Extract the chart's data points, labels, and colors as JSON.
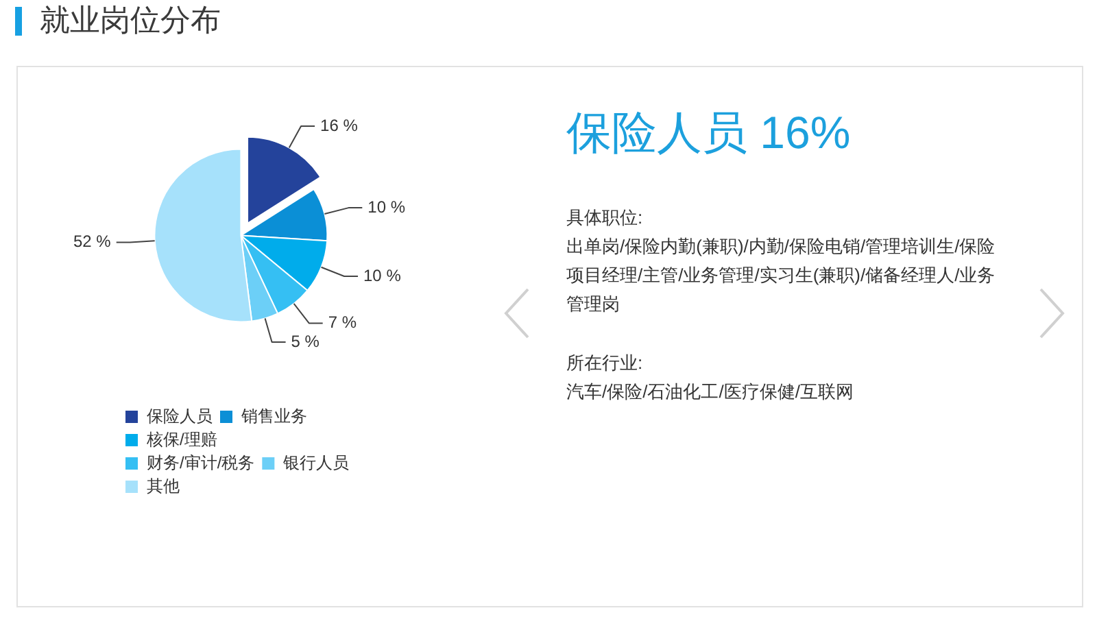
{
  "chart_data": [
    {
      "type": "pie",
      "title": "就业岗位分布",
      "categories": [
        "保险人员",
        "销售业务",
        "核保/理赔",
        "财务/审计/税务",
        "银行人员",
        "其他"
      ],
      "values": [
        16,
        10,
        10,
        7,
        5,
        52
      ],
      "colors": [
        "#24439b",
        "#0b8fd6",
        "#00aceb",
        "#35bff3",
        "#6ccff7",
        "#a6e1fb"
      ],
      "value_labels": [
        "16 %",
        "10 %",
        "10 %",
        "7 %",
        "5 %",
        "52 %"
      ],
      "legend": "bottom"
    },
    {
      "type": "other",
      "title": "保险人员 16%",
      "annotations": [
        "具体职位:",
        "出单岗/保险内勤(兼职)/内勤/保险电销/管理培训生/保险项目经理/主管/业务管理/实习生(兼职)/储备经理人/业务管理岗",
        "所在行业:",
        "汽车/保险/石油化工/医疗保健/互联网"
      ]
    }
  ]
}
